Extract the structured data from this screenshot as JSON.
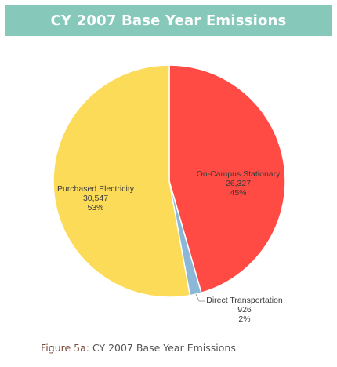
{
  "header": {
    "title": "CY 2007 Base Year Emissions"
  },
  "caption": {
    "label": "Figure 5a:",
    "text": "CY 2007 Base Year Emissions"
  },
  "chart_data": {
    "type": "pie",
    "categories": [
      "On-Campus Stationary",
      "Direct Transportation",
      "Purchased Electricity"
    ],
    "values": [
      26327,
      926,
      30547
    ],
    "value_labels": [
      "26,327",
      "926",
      "30,547"
    ],
    "percent_labels": [
      "45%",
      "2%",
      "53%"
    ],
    "colors": [
      "#ff4b43",
      "#8bb8d9",
      "#fbdb58"
    ],
    "start": "top",
    "direction": "clockwise"
  }
}
